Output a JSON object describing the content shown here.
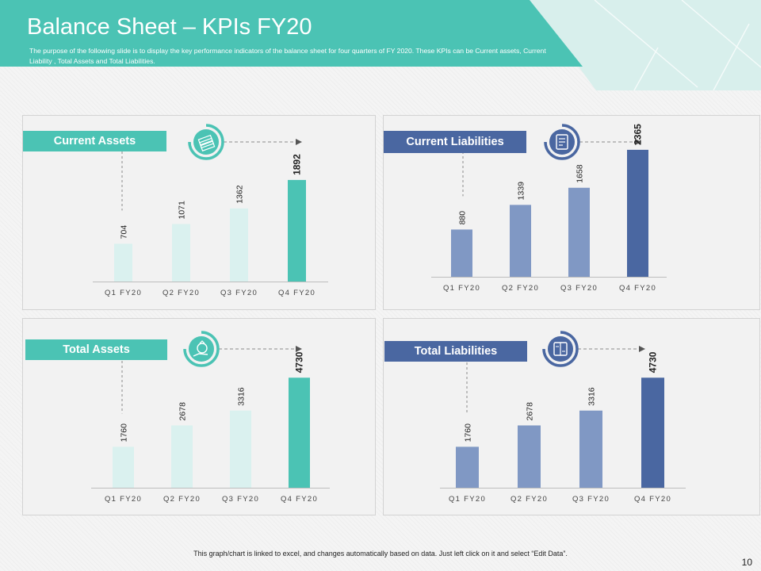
{
  "header": {
    "title": "Balance Sheet – KPIs FY20",
    "subtitle": "The purpose of the following slide is to display the key performance indicators of the balance sheet for four quarters of FY 2020. These KPIs can be Current assets, Current Liability , Total Assets and Total Liabilities."
  },
  "footer": {
    "note": "This graph/chart is linked to excel, and changes automatically based on data. Just left click on it and select “Edit Data”.",
    "page_number": "10"
  },
  "colors": {
    "teal": "#4bc3b4",
    "teal_light": "#daf1ef",
    "navy": "#4a67a1",
    "navy_light": "#8098c4"
  },
  "chart_data": [
    {
      "type": "bar",
      "title": "Current Assets",
      "icon": "money-stack-icon",
      "theme": "teal",
      "categories": [
        "Q1 FY20",
        "Q2 FY20",
        "Q3 FY20",
        "Q4 FY20"
      ],
      "values": [
        704,
        1071,
        1362,
        1892
      ],
      "highlight": "Q4 FY20",
      "ylim": [
        0,
        2600
      ]
    },
    {
      "type": "bar",
      "title": "Current Liabilities",
      "icon": "document-icon",
      "theme": "navy",
      "categories": [
        "Q1 FY20",
        "Q2 FY20",
        "Q3 FY20",
        "Q4 FY20"
      ],
      "values": [
        880,
        1339,
        1658,
        2365
      ],
      "highlight": "Q4 FY20",
      "ylim": [
        0,
        2600
      ]
    },
    {
      "type": "bar",
      "title": "Total Assets",
      "icon": "money-bag-hand-icon",
      "theme": "teal",
      "categories": [
        "Q1 FY20",
        "Q2 FY20",
        "Q3 FY20",
        "Q4 FY20"
      ],
      "values": [
        1760,
        2678,
        3316,
        4730
      ],
      "highlight": "Q4 FY20",
      "ylim": [
        0,
        6000
      ]
    },
    {
      "type": "bar",
      "title": "Total Liabilities",
      "icon": "ledger-icon",
      "theme": "navy",
      "categories": [
        "Q1 FY20",
        "Q2 FY20",
        "Q3 FY20",
        "Q4 FY20"
      ],
      "values": [
        1760,
        2678,
        3316,
        4730
      ],
      "highlight": "Q4 FY20",
      "ylim": [
        0,
        6000
      ]
    }
  ]
}
